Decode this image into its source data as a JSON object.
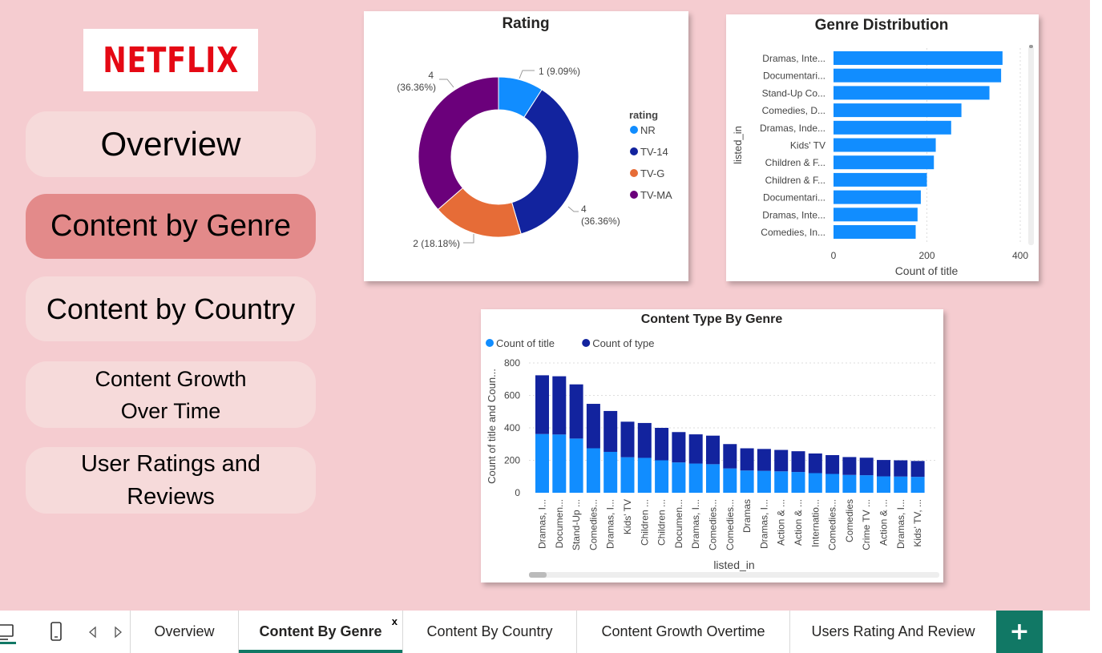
{
  "logo": {
    "text": "NETFLIX"
  },
  "nav": [
    {
      "label": "Overview"
    },
    {
      "label": "Content by Genre",
      "active": true
    },
    {
      "label": "Content by Country"
    },
    {
      "label": "Content Growth Over Time"
    },
    {
      "label": "User Ratings and Reviews"
    }
  ],
  "tabs": [
    {
      "label": "Overview"
    },
    {
      "label": "Content By Genre",
      "active": true,
      "close": "x"
    },
    {
      "label": "Content By Country"
    },
    {
      "label": "Content Growth Overtime"
    },
    {
      "label": "Users Rating And Review"
    }
  ],
  "add_tab_label": "+",
  "icons": [
    "desktop-icon",
    "phone-icon",
    "prev-page-icon",
    "next-page-icon"
  ],
  "chart_data": [
    {
      "type": "pie",
      "title": "Rating",
      "legend_title": "rating",
      "legend_position": "right",
      "labels": [
        "NR",
        "TV-14",
        "TV-G",
        "TV-MA"
      ],
      "values": [
        1,
        4,
        2,
        4
      ],
      "percent_labels": [
        "(9.09%)",
        "(36.36%)",
        "(18.18%)",
        "(36.36%)"
      ],
      "colors": [
        "#118dff",
        "#12239e",
        "#e66c37",
        "#6b007b"
      ]
    },
    {
      "type": "bar",
      "orientation": "horizontal",
      "title": "Genre Distribution",
      "xlabel": "Count of title",
      "ylabel": "listed_in",
      "categories": [
        "Dramas, Inte...",
        "Documentari...",
        "Stand-Up Co...",
        "Comedies, D...",
        "Dramas, Inde...",
        "Kids' TV",
        "Children & F...",
        "Children & F...",
        "Documentari...",
        "Dramas, Inte...",
        "Comedies, In..."
      ],
      "values": [
        362,
        359,
        334,
        274,
        252,
        219,
        215,
        200,
        187,
        180,
        176
      ],
      "xlim": [
        0,
        400
      ],
      "xticks": [
        0,
        200,
        400
      ],
      "color": "#118dff"
    },
    {
      "type": "bar",
      "stacked": true,
      "title": "Content Type By Genre",
      "xlabel": "listed_in",
      "ylabel": "Count of title and Coun...",
      "legend_position": "top-left",
      "categories": [
        "Dramas, I...",
        "Documen...",
        "Stand-Up ...",
        "Comedies...",
        "Dramas, I...",
        "Kids' TV",
        "Children ...",
        "Children ...",
        "Documen...",
        "Dramas, I...",
        "Comedies...",
        "Comedies...",
        "Dramas",
        "Dramas, I...",
        "Action & ...",
        "Action & ...",
        "Internatio...",
        "Comedies...",
        "Comedies",
        "Crime TV ...",
        "Action & ...",
        "Dramas, I...",
        "Kids' TV, ..."
      ],
      "series": [
        {
          "name": "Count of title",
          "color": "#118dff",
          "values": [
            362,
            359,
            334,
            274,
            252,
            219,
            215,
            200,
            187,
            180,
            176,
            150,
            137,
            135,
            132,
            128,
            121,
            116,
            110,
            108,
            101,
            100,
            98
          ]
        },
        {
          "name": "Count of type",
          "color": "#12239e",
          "values": [
            362,
            359,
            334,
            274,
            252,
            219,
            215,
            200,
            187,
            180,
            176,
            150,
            137,
            135,
            132,
            128,
            121,
            116,
            110,
            108,
            101,
            100,
            98
          ]
        }
      ],
      "ylim": [
        0,
        800
      ],
      "yticks": [
        0,
        200,
        400,
        600,
        800
      ]
    }
  ]
}
